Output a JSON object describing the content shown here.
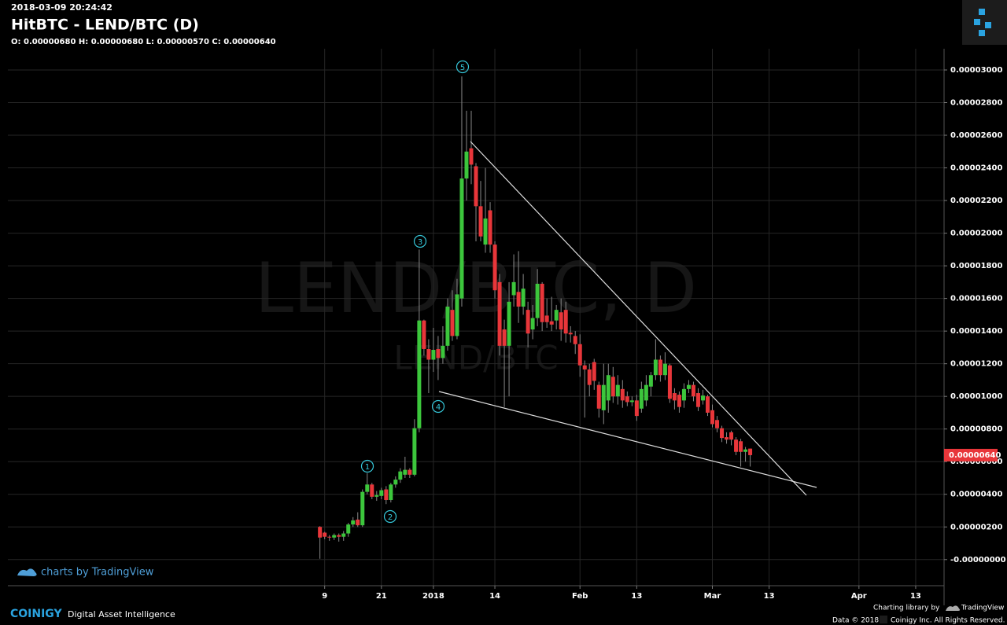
{
  "header": {
    "timestamp": "2018-03-09 20:24:42",
    "title": "HitBTC - LEND/BTC (D)",
    "ohlc_summary": "O: 0.00000680 H: 0.00000680 L: 0.00000570 C: 0.00000640"
  },
  "watermark": {
    "main": "LEND/BTC, D",
    "sub": "LEND/BTC"
  },
  "attribution": "charts by TradingView",
  "footer": {
    "brand": "COINIGY",
    "tagline": "Digital Asset Intelligence",
    "library": "Charting library by",
    "library_name": "TradingView",
    "data": "Data © 2018",
    "rights": "Coinigy Inc. All Rights Reserved."
  },
  "wave_labels": [
    "1",
    "2",
    "3",
    "4",
    "5"
  ],
  "chart_data": {
    "type": "candlestick",
    "up_color": "#3cc63c",
    "down_color": "#e8363a",
    "grid": true,
    "x": [
      "2017-12-08",
      "2017-12-09",
      "2017-12-10",
      "2017-12-11",
      "2017-12-12",
      "2017-12-13",
      "2017-12-14",
      "2017-12-15",
      "2017-12-16",
      "2017-12-17",
      "2017-12-18",
      "2017-12-19",
      "2017-12-20",
      "2017-12-21",
      "2017-12-22",
      "2017-12-23",
      "2017-12-24",
      "2017-12-25",
      "2017-12-26",
      "2017-12-27",
      "2017-12-28",
      "2017-12-29",
      "2017-12-30",
      "2017-12-31",
      "2018-01-01",
      "2018-01-02",
      "2018-01-03",
      "2018-01-04",
      "2018-01-05",
      "2018-01-06",
      "2018-01-07",
      "2018-01-08",
      "2018-01-09",
      "2018-01-10",
      "2018-01-11",
      "2018-01-12",
      "2018-01-13",
      "2018-01-14",
      "2018-01-15",
      "2018-01-16",
      "2018-01-17",
      "2018-01-18",
      "2018-01-19",
      "2018-01-20",
      "2018-01-21",
      "2018-01-22",
      "2018-01-23",
      "2018-01-24",
      "2018-01-25",
      "2018-01-26",
      "2018-01-27",
      "2018-01-28",
      "2018-01-29",
      "2018-01-30",
      "2018-01-31",
      "2018-02-01",
      "2018-02-02",
      "2018-02-03",
      "2018-02-04",
      "2018-02-05",
      "2018-02-06",
      "2018-02-07",
      "2018-02-08",
      "2018-02-09",
      "2018-02-10",
      "2018-02-11",
      "2018-02-12",
      "2018-02-13",
      "2018-02-14",
      "2018-02-15",
      "2018-02-16",
      "2018-02-17",
      "2018-02-18",
      "2018-02-19",
      "2018-02-20",
      "2018-02-21",
      "2018-02-22",
      "2018-02-23",
      "2018-02-24",
      "2018-02-25",
      "2018-02-26",
      "2018-02-27",
      "2018-02-28",
      "2018-03-01",
      "2018-03-02",
      "2018-03-03",
      "2018-03-04",
      "2018-03-05",
      "2018-03-06",
      "2018-03-07",
      "2018-03-08",
      "2018-03-09"
    ],
    "open": [
      2e-06,
      1.65e-06,
      1.4e-06,
      1.35e-06,
      1.5e-06,
      1.4e-06,
      1.6e-06,
      2.15e-06,
      2.45e-06,
      2.1e-06,
      4.15e-06,
      4.6e-06,
      3.85e-06,
      3.9e-06,
      4.3e-06,
      3.65e-06,
      4.6e-06,
      4.9e-06,
      5.2e-06,
      5.5e-06,
      5.2e-06,
      8.05e-06,
      1.465e-05,
      1.29e-05,
      1.225e-05,
      1.29e-05,
      1.235e-05,
      1.31e-05,
      1.53e-05,
      1.37e-05,
      1.6e-05,
      2.335e-05,
      2.52e-05,
      2.41e-05,
      2.165e-05,
      1.93e-05,
      2.14e-05,
      1.93e-05,
      1.7e-05,
      1.41e-05,
      1.31e-05,
      1.62e-05,
      1.64e-05,
      1.55e-05,
      1.53e-05,
      1.41e-05,
      1.48e-05,
      1.69e-05,
      1.495e-05,
      1.46e-05,
      1.465e-05,
      1.515e-05,
      1.53e-05,
      1.39e-05,
      1.37e-05,
      1.32e-05,
      1.19e-05,
      1.165e-05,
      1.21e-05,
      1.07e-05,
      9.15e-06,
      9.75e-06,
      1.12e-05,
      1e-05,
      1.045e-05,
      1e-05,
      9.65e-06,
      9.75e-06,
      9.25e-06,
      9.75e-06,
      1.06e-05,
      1.13e-05,
      1.225e-05,
      1.13e-05,
      1.19e-05,
      1.02e-05,
      1.01e-05,
      9.75e-06,
      1.045e-05,
      1.07e-05,
      1.02e-05,
      9.75e-06,
      1e-05,
      9.15e-06,
      8.55e-06,
      8.05e-06,
      7.5e-06,
      7.8e-06,
      7.35e-06,
      7.25e-06,
      6.6e-06,
      6.8e-06
    ],
    "high": [
      2.05e-06,
      1.7e-06,
      1.5e-06,
      1.6e-06,
      1.6e-06,
      1.75e-06,
      2.25e-06,
      2.6e-06,
      2.9e-06,
      4.3e-06,
      5.3e-06,
      4.7e-06,
      4.2e-06,
      4.4e-06,
      4.5e-06,
      4.7e-06,
      5.1e-06,
      5.6e-06,
      6.3e-06,
      5.6e-06,
      8.6e-06,
      1.9e-05,
      1.47e-05,
      1.35e-05,
      1.42e-05,
      1.37e-05,
      1.43e-05,
      1.6e-05,
      1.65e-05,
      1.72e-05,
      2.96e-05,
      2.75e-05,
      2.75e-05,
      2.43e-05,
      2.32e-05,
      2.4e-05,
      2.19e-05,
      1.95e-05,
      1.75e-05,
      1.47e-05,
      1.7e-05,
      1.87e-05,
      1.89e-05,
      1.75e-05,
      1.58e-05,
      1.56e-05,
      1.78e-05,
      1.7e-05,
      1.6e-05,
      1.61e-05,
      1.56e-05,
      1.6e-05,
      1.58e-05,
      1.43e-05,
      1.4e-05,
      1.38e-05,
      1.22e-05,
      1.2e-05,
      1.23e-05,
      1.09e-05,
      1.2e-05,
      1.2e-05,
      1.18e-05,
      1.13e-05,
      1.1e-05,
      1.03e-05,
      1e-05,
      1.01e-05,
      1.09e-05,
      1.13e-05,
      1.15e-05,
      1.35e-05,
      1.25e-05,
      1.27e-05,
      1.2e-05,
      1.05e-05,
      1.03e-05,
      1.08e-05,
      1.1e-05,
      1.09e-05,
      1.05e-05,
      1.04e-05,
      1.01e-05,
      9.5e-06,
      8.8e-06,
      8.2e-06,
      7.8e-06,
      7.9e-06,
      7.5e-06,
      7.4e-06,
      6.9e-06,
      6.8e-06
    ],
    "low": [
      5e-08,
      1.25e-06,
      1.15e-06,
      1.2e-06,
      1.1e-06,
      1.15e-06,
      1.4e-06,
      2e-06,
      2e-06,
      2e-06,
      4e-06,
      3.7e-06,
      3.6e-06,
      3.7e-06,
      3.4e-06,
      3.5e-06,
      4.4e-06,
      4.7e-06,
      5e-06,
      5e-06,
      5.1e-06,
      7.8e-06,
      1.25e-05,
      1.02e-05,
      1.15e-05,
      1.1e-05,
      1.2e-05,
      1.28e-05,
      1.34e-05,
      1.35e-05,
      1.55e-05,
      2.2e-05,
      2.3e-05,
      1.95e-05,
      1.95e-05,
      1.88e-05,
      1.88e-05,
      1.6e-05,
      1.25e-05,
      9.35e-06,
      1e-05,
      1.55e-05,
      1.45e-05,
      1.5e-05,
      1.3e-05,
      1.35e-05,
      1.43e-05,
      1.4e-05,
      1.42e-05,
      1.4e-05,
      1.41e-05,
      1.34e-05,
      1.33e-05,
      1.33e-05,
      1.26e-05,
      1.12e-05,
      8.7e-06,
      1e-05,
      1.04e-05,
      8.7e-06,
      8.3e-06,
      9e-06,
      9.6e-06,
      9.5e-06,
      9.3e-06,
      9.4e-06,
      9.4e-06,
      8.5e-06,
      9e-06,
      9.4e-06,
      1e-05,
      1.1e-05,
      1.09e-05,
      1.1e-05,
      9.6e-06,
      9.2e-06,
      9e-06,
      9.3e-06,
      1.02e-05,
      9.7e-06,
      9.1e-06,
      9.5e-06,
      8.8e-06,
      8.1e-06,
      7.8e-06,
      7.2e-06,
      7.1e-06,
      7e-06,
      6.4e-06,
      5.7e-06,
      6e-06,
      5.7e-06
    ],
    "close": [
      1.35e-06,
      1.4e-06,
      1.35e-06,
      1.5e-06,
      1.4e-06,
      1.6e-06,
      2.15e-06,
      2.4e-06,
      2.1e-06,
      4.15e-06,
      4.6e-06,
      3.85e-06,
      3.95e-06,
      4.25e-06,
      3.65e-06,
      4.6e-06,
      4.9e-06,
      5.4e-06,
      5.5e-06,
      5.2e-06,
      8.05e-06,
      1.465e-05,
      1.29e-05,
      1.225e-05,
      1.285e-05,
      1.235e-05,
      1.31e-05,
      1.55e-05,
      1.37e-05,
      1.625e-05,
      2.335e-05,
      2.5e-05,
      2.42e-05,
      2.165e-05,
      1.98e-05,
      2.09e-05,
      1.93e-05,
      1.65e-05,
      1.31e-05,
      1.31e-05,
      1.58e-05,
      1.7e-05,
      1.55e-05,
      1.66e-05,
      1.385e-05,
      1.48e-05,
      1.69e-05,
      1.455e-05,
      1.455e-05,
      1.44e-05,
      1.53e-05,
      1.41e-05,
      1.385e-05,
      1.38e-05,
      1.32e-05,
      1.19e-05,
      1.165e-05,
      1.07e-05,
      1.095e-05,
      9.25e-06,
      1.07e-05,
      1.13e-05,
      1e-05,
      1.07e-05,
      9.75e-06,
      9.65e-06,
      9.75e-06,
      8.8e-06,
      1.045e-05,
      1.07e-05,
      1.13e-05,
      1.225e-05,
      1.13e-05,
      1.2e-05,
      9.85e-06,
      9.75e-06,
      9.35e-06,
      1.045e-05,
      1.07e-05,
      1e-05,
      9.35e-06,
      1.005e-05,
      9e-06,
      8.3e-06,
      8.05e-06,
      7.45e-06,
      7.35e-06,
      7.35e-06,
      6.6e-06,
      6.6e-06,
      6.75e-06,
      6.4e-06
    ],
    "xlim": [
      "2017-10-03",
      "2018-04-19"
    ],
    "xticks": [
      {
        "value": "2017-12-09",
        "label": "9"
      },
      {
        "value": "2017-12-21",
        "label": "21"
      },
      {
        "value": "2018-01-01",
        "label": "2018"
      },
      {
        "value": "2018-01-14",
        "label": "14"
      },
      {
        "value": "2018-02-01",
        "label": "Feb"
      },
      {
        "value": "2018-02-13",
        "label": "13"
      },
      {
        "value": "2018-03-01",
        "label": "Mar"
      },
      {
        "value": "2018-03-13",
        "label": "13"
      },
      {
        "value": "2018-04-01",
        "label": "Apr"
      },
      {
        "value": "2018-04-13",
        "label": "13"
      }
    ],
    "ylim": [
      -1.6e-06,
      3.13e-05
    ],
    "yticks": [
      {
        "value": 0,
        "label": "-0.00000000"
      },
      {
        "value": 2e-06,
        "label": "0.00000200"
      },
      {
        "value": 4e-06,
        "label": "0.00000400"
      },
      {
        "value": 6e-06,
        "label": "0.00000600"
      },
      {
        "value": 8e-06,
        "label": "0.00000800"
      },
      {
        "value": 1e-05,
        "label": "0.00001000"
      },
      {
        "value": 1.2e-05,
        "label": "0.00001200"
      },
      {
        "value": 1.4e-05,
        "label": "0.00001400"
      },
      {
        "value": 1.6e-05,
        "label": "0.00001600"
      },
      {
        "value": 1.8e-05,
        "label": "0.00001800"
      },
      {
        "value": 2e-05,
        "label": "0.00002000"
      },
      {
        "value": 2.2e-05,
        "label": "0.00002200"
      },
      {
        "value": 2.4e-05,
        "label": "0.00002400"
      },
      {
        "value": 2.6e-05,
        "label": "0.00002600"
      },
      {
        "value": 2.8e-05,
        "label": "0.00002800"
      },
      {
        "value": 3e-05,
        "label": "0.00003000"
      }
    ],
    "last_price": {
      "value": 6.4e-06,
      "label": "0.00000640"
    }
  }
}
